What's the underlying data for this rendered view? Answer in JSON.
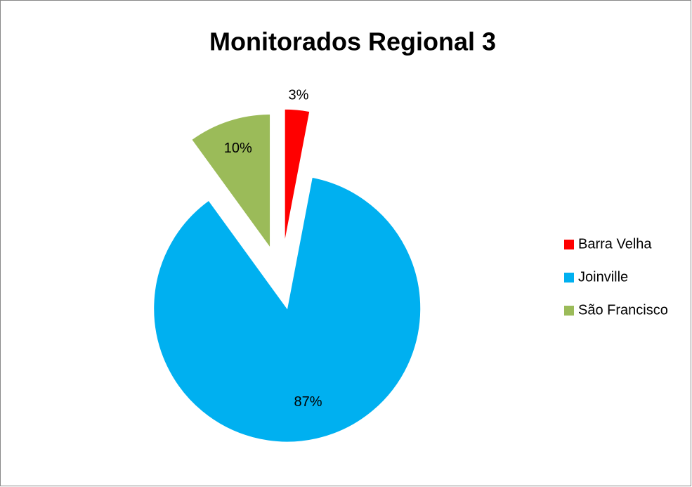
{
  "chart_data": {
    "type": "pie",
    "title": "Monitorados Regional 3",
    "categories": [
      "Barra Velha",
      "Joinville",
      "São Francisco"
    ],
    "values": [
      3,
      87,
      10
    ],
    "value_labels": [
      "3%",
      "87%",
      "10%"
    ],
    "colors": [
      "#ff0000",
      "#00b0f0",
      "#9bbb59"
    ],
    "legend": "right"
  }
}
